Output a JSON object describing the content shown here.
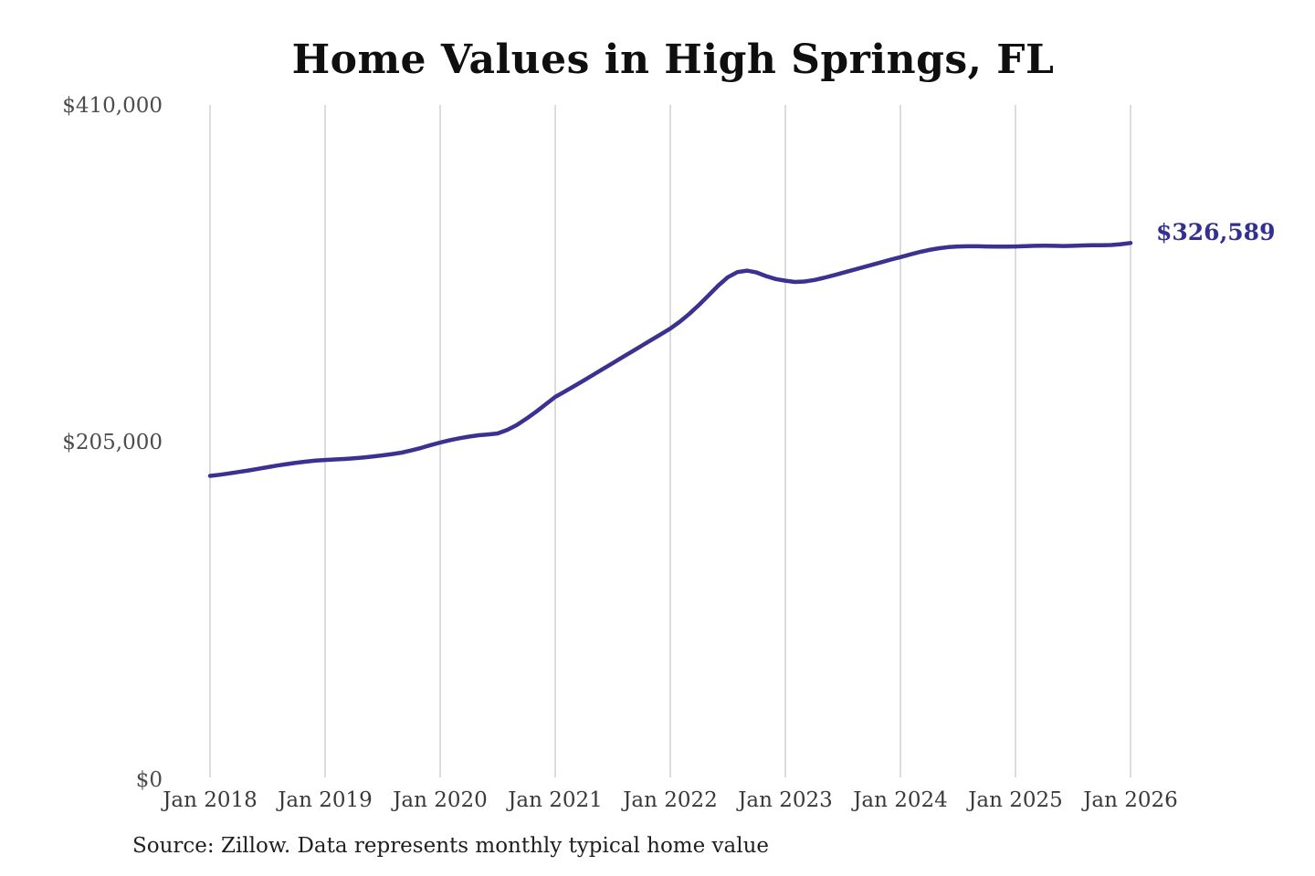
{
  "page": {
    "background": "#ffffff"
  },
  "chart_data": {
    "type": "line",
    "title": "Home Values in High Springs, FL",
    "source_note": "Source: Zillow. Data represents monthly typical home value",
    "end_label": "$326,589",
    "end_value": 326589,
    "ylim": [
      0,
      410000
    ],
    "grid": "vertical-only",
    "legend": "none",
    "y_ticks": [
      {
        "label": "$0",
        "value": 0
      },
      {
        "label": "$205,000",
        "value": 205000
      },
      {
        "label": "$410,000",
        "value": 410000
      }
    ],
    "x_ticks": [
      "Jan 2018",
      "Jan 2019",
      "Jan 2020",
      "Jan 2021",
      "Jan 2022",
      "Jan 2023",
      "Jan 2024",
      "Jan 2025",
      "Jan 2026"
    ],
    "colors": {
      "line": "#3a3191",
      "end_label": "#33308f",
      "grid": "#c9c9c9",
      "title": "#0f0f0f",
      "axis_text": "#3a3a3a"
    },
    "series": [
      {
        "name": "Monthly typical home value",
        "x_start": "2018-01",
        "x_end": "2026-01",
        "interval": "monthly",
        "values": [
          185000,
          185700,
          186500,
          187400,
          188300,
          189300,
          190300,
          191300,
          192200,
          193000,
          193700,
          194300,
          194700,
          195000,
          195300,
          195700,
          196200,
          196800,
          197500,
          198300,
          199200,
          200500,
          202000,
          203700,
          205300,
          206700,
          207900,
          208900,
          209700,
          210200,
          210800,
          213000,
          216000,
          219800,
          224000,
          228500,
          233000,
          236300,
          239700,
          243100,
          246600,
          250100,
          253600,
          257100,
          260600,
          264100,
          267600,
          271100,
          274600,
          278800,
          283600,
          289000,
          294800,
          300700,
          305800,
          308900,
          309800,
          308700,
          306500,
          304700,
          303700,
          302900,
          303200,
          304100,
          305400,
          306900,
          308500,
          310100,
          311700,
          313300,
          314900,
          316500,
          318000,
          319600,
          321100,
          322400,
          323400,
          324100,
          324500,
          324600,
          324600,
          324500,
          324400,
          324400,
          324500,
          324700,
          324900,
          325000,
          324900,
          324800,
          324900,
          325100,
          325200,
          325200,
          325400,
          325900,
          326589
        ]
      }
    ]
  }
}
